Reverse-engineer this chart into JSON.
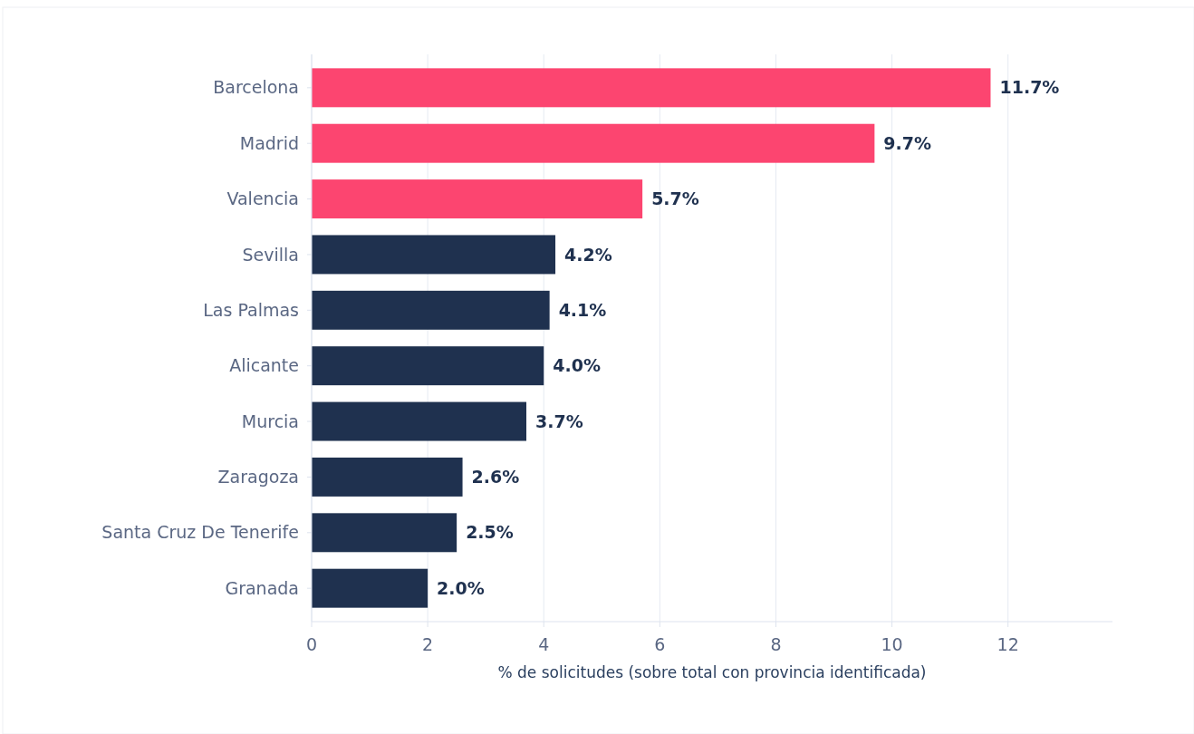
{
  "chart_data": {
    "type": "bar",
    "orientation": "horizontal",
    "categories": [
      "Barcelona",
      "Madrid",
      "Valencia",
      "Sevilla",
      "Las Palmas",
      "Alicante",
      "Murcia",
      "Zaragoza",
      "Santa Cruz De Tenerife",
      "Granada"
    ],
    "values": [
      11.7,
      9.7,
      5.7,
      4.2,
      4.1,
      4.0,
      3.7,
      2.6,
      2.5,
      2.0
    ],
    "colors": [
      "#fc4570",
      "#fc4570",
      "#fc4570",
      "#1f314f",
      "#1f314f",
      "#1f314f",
      "#1f314f",
      "#1f314f",
      "#1f314f",
      "#1f314f"
    ],
    "value_labels": [
      "11.7%",
      "9.7%",
      "5.7%",
      "4.2%",
      "4.1%",
      "4.0%",
      "3.7%",
      "2.6%",
      "2.5%",
      "2.0%"
    ],
    "xlabel": "% de solicitudes (sobre total con provincia identificada)",
    "xlim": [
      0,
      13.8
    ],
    "xticks": [
      0,
      2,
      4,
      6,
      8,
      10,
      12
    ],
    "grid": "x"
  }
}
